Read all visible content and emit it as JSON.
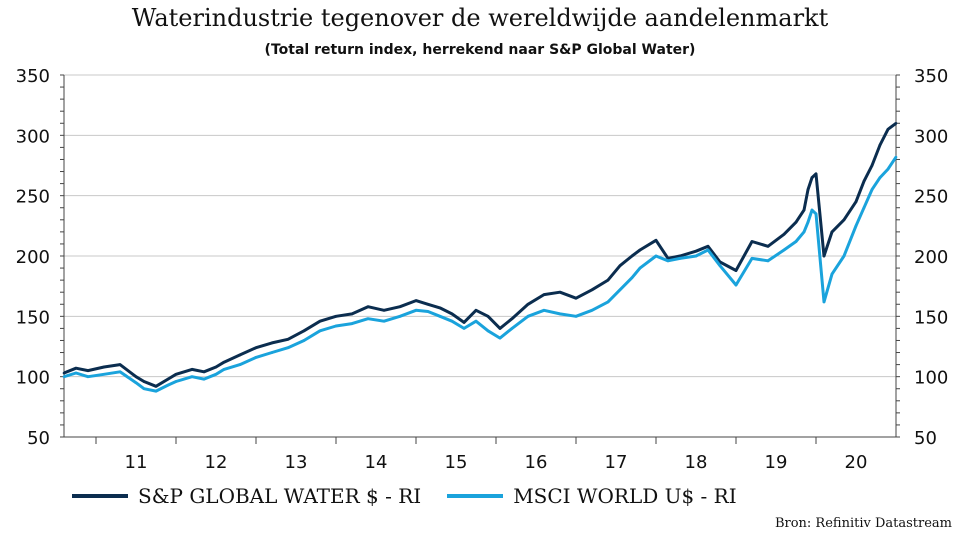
{
  "chart_data": {
    "type": "line",
    "title": "Waterindustrie tegenover de wereldwijde aandelenmarkt",
    "subtitle": "(Total return index, herrekend naar S&P Global Water)",
    "x_tick_labels": [
      "11",
      "12",
      "13",
      "14",
      "15",
      "16",
      "17",
      "18",
      "19",
      "20"
    ],
    "y_ticks": [
      50,
      100,
      150,
      200,
      250,
      300,
      350
    ],
    "ylim": [
      50,
      350
    ],
    "xlim": [
      2010.6,
      2021.0
    ],
    "dual_y_axis": true,
    "grid": "horizontal",
    "legend_position": "bottom",
    "source": "Bron: Refinitiv Datastream",
    "series": [
      {
        "name": "S&P GLOBAL WATER $ - RI",
        "color": "#0b2d4f",
        "x": [
          2010.6,
          2010.75,
          2010.9,
          2011.1,
          2011.3,
          2011.5,
          2011.6,
          2011.75,
          2011.9,
          2012.0,
          2012.2,
          2012.35,
          2012.5,
          2012.6,
          2012.8,
          2013.0,
          2013.2,
          2013.4,
          2013.6,
          2013.8,
          2014.0,
          2014.2,
          2014.4,
          2014.6,
          2014.8,
          2015.0,
          2015.15,
          2015.3,
          2015.45,
          2015.6,
          2015.75,
          2015.9,
          2016.05,
          2016.2,
          2016.4,
          2016.6,
          2016.8,
          2017.0,
          2017.2,
          2017.4,
          2017.55,
          2017.7,
          2017.8,
          2018.0,
          2018.15,
          2018.3,
          2018.5,
          2018.65,
          2018.8,
          2019.0,
          2019.2,
          2019.4,
          2019.6,
          2019.75,
          2019.85,
          2019.9,
          2019.95,
          2020.0,
          2020.1,
          2020.2,
          2020.35,
          2020.5,
          2020.6,
          2020.7,
          2020.8,
          2020.9,
          2021.0
        ],
        "values": [
          103,
          107,
          105,
          108,
          110,
          100,
          96,
          92,
          98,
          102,
          106,
          104,
          108,
          112,
          118,
          124,
          128,
          131,
          138,
          146,
          150,
          152,
          158,
          155,
          158,
          163,
          160,
          157,
          152,
          145,
          155,
          150,
          140,
          148,
          160,
          168,
          170,
          165,
          172,
          180,
          192,
          200,
          205,
          213,
          198,
          200,
          204,
          208,
          195,
          188,
          212,
          208,
          218,
          228,
          238,
          255,
          265,
          268,
          200,
          220,
          230,
          245,
          262,
          275,
          292,
          305,
          310
        ]
      },
      {
        "name": "MSCI WORLD U$ - RI",
        "color": "#1aa3dc",
        "x": [
          2010.6,
          2010.75,
          2010.9,
          2011.1,
          2011.3,
          2011.5,
          2011.6,
          2011.75,
          2011.9,
          2012.0,
          2012.2,
          2012.35,
          2012.5,
          2012.6,
          2012.8,
          2013.0,
          2013.2,
          2013.4,
          2013.6,
          2013.8,
          2014.0,
          2014.2,
          2014.4,
          2014.6,
          2014.8,
          2015.0,
          2015.15,
          2015.3,
          2015.45,
          2015.6,
          2015.75,
          2015.9,
          2016.05,
          2016.2,
          2016.4,
          2016.6,
          2016.8,
          2017.0,
          2017.2,
          2017.4,
          2017.55,
          2017.7,
          2017.8,
          2018.0,
          2018.15,
          2018.3,
          2018.5,
          2018.65,
          2018.8,
          2019.0,
          2019.2,
          2019.4,
          2019.6,
          2019.75,
          2019.85,
          2019.9,
          2019.95,
          2020.0,
          2020.1,
          2020.2,
          2020.35,
          2020.5,
          2020.6,
          2020.7,
          2020.8,
          2020.9,
          2021.0
        ],
        "values": [
          100,
          103,
          100,
          102,
          104,
          95,
          90,
          88,
          93,
          96,
          100,
          98,
          102,
          106,
          110,
          116,
          120,
          124,
          130,
          138,
          142,
          144,
          148,
          146,
          150,
          155,
          154,
          150,
          146,
          140,
          146,
          138,
          132,
          140,
          150,
          155,
          152,
          150,
          155,
          162,
          172,
          182,
          190,
          200,
          196,
          198,
          200,
          205,
          192,
          176,
          198,
          196,
          205,
          212,
          220,
          228,
          238,
          235,
          162,
          185,
          200,
          225,
          240,
          255,
          265,
          272,
          282
        ]
      }
    ]
  }
}
